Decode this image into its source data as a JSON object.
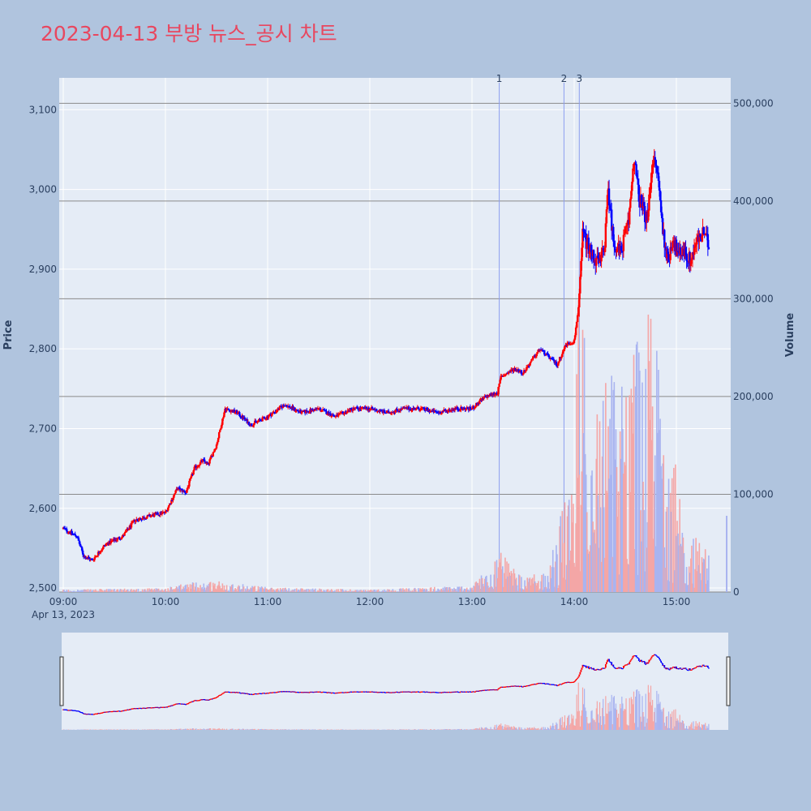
{
  "chart_data": {
    "type": "candlestick",
    "title": "2023-04-13 부방 뉴스_공시 차트",
    "ylabel": "Price",
    "y2label": "Volume",
    "xlabel": "",
    "x_date_label": "Apr 13, 2023",
    "ylim": [
      2497,
      3142
    ],
    "y2lim": [
      0,
      526000
    ],
    "xlim": [
      "09:00",
      "15:30"
    ],
    "y_ticks": [
      2500,
      2600,
      2700,
      2800,
      2900,
      3000,
      3100
    ],
    "y_tick_labels": [
      "2,500",
      "2,600",
      "2,700",
      "2,800",
      "2,900",
      "3,000",
      "3,100"
    ],
    "y2_ticks": [
      0,
      100000,
      200000,
      300000,
      400000,
      500000
    ],
    "y2_tick_labels": [
      "0",
      "100,000",
      "200,000",
      "300,000",
      "400,000",
      "500,000"
    ],
    "x_tick_labels": [
      "09:00",
      "10:00",
      "11:00",
      "12:00",
      "13:00",
      "14:00",
      "15:00"
    ],
    "grid": true,
    "up_color": "#ff0000",
    "down_color": "#0000ff",
    "events": [
      {
        "label": "1",
        "time": "13:16"
      },
      {
        "label": "2",
        "time": "13:54"
      },
      {
        "label": "3",
        "time": "14:03"
      }
    ],
    "price_keypoints": [
      [
        "09:00",
        2575
      ],
      [
        "09:08",
        2565
      ],
      [
        "09:12",
        2540
      ],
      [
        "09:17",
        2535
      ],
      [
        "09:25",
        2555
      ],
      [
        "09:35",
        2565
      ],
      [
        "09:42",
        2585
      ],
      [
        "09:50",
        2590
      ],
      [
        "10:00",
        2595
      ],
      [
        "10:07",
        2625
      ],
      [
        "10:12",
        2620
      ],
      [
        "10:17",
        2650
      ],
      [
        "10:22",
        2660
      ],
      [
        "10:25",
        2655
      ],
      [
        "10:30",
        2680
      ],
      [
        "10:35",
        2725
      ],
      [
        "10:42",
        2720
      ],
      [
        "10:50",
        2705
      ],
      [
        "11:00",
        2715
      ],
      [
        "11:10",
        2730
      ],
      [
        "11:20",
        2720
      ],
      [
        "11:30",
        2725
      ],
      [
        "11:40",
        2715
      ],
      [
        "11:50",
        2725
      ],
      [
        "12:00",
        2725
      ],
      [
        "12:10",
        2720
      ],
      [
        "12:20",
        2725
      ],
      [
        "12:30",
        2725
      ],
      [
        "12:40",
        2720
      ],
      [
        "12:50",
        2725
      ],
      [
        "13:00",
        2725
      ],
      [
        "13:08",
        2740
      ],
      [
        "13:15",
        2745
      ],
      [
        "13:17",
        2765
      ],
      [
        "13:25",
        2775
      ],
      [
        "13:30",
        2770
      ],
      [
        "13:35",
        2785
      ],
      [
        "13:40",
        2800
      ],
      [
        "13:45",
        2790
      ],
      [
        "13:50",
        2780
      ],
      [
        "13:55",
        2805
      ],
      [
        "14:00",
        2810
      ],
      [
        "14:03",
        2860
      ],
      [
        "14:05",
        2945
      ],
      [
        "14:10",
        2920
      ],
      [
        "14:15",
        2905
      ],
      [
        "14:18",
        2935
      ],
      [
        "14:20",
        3000
      ],
      [
        "14:23",
        2935
      ],
      [
        "14:27",
        2920
      ],
      [
        "14:32",
        2960
      ],
      [
        "14:35",
        3040
      ],
      [
        "14:38",
        2990
      ],
      [
        "14:43",
        2960
      ],
      [
        "14:46",
        3040
      ],
      [
        "14:49",
        3020
      ],
      [
        "14:52",
        2950
      ],
      [
        "14:55",
        2910
      ],
      [
        "14:58",
        2940
      ],
      [
        "15:01",
        2915
      ],
      [
        "15:04",
        2925
      ],
      [
        "15:08",
        2910
      ],
      [
        "15:12",
        2935
      ],
      [
        "15:16",
        2945
      ],
      [
        "15:19",
        2930
      ]
    ],
    "volume_profile": [
      [
        "09:00",
        1500
      ],
      [
        "10:00",
        2500
      ],
      [
        "10:15",
        6000
      ],
      [
        "10:30",
        7000
      ],
      [
        "11:00",
        3000
      ],
      [
        "12:00",
        1500
      ],
      [
        "13:00",
        4000
      ],
      [
        "13:16",
        25000
      ],
      [
        "13:30",
        8000
      ],
      [
        "13:45",
        15000
      ],
      [
        "13:54",
        55000
      ],
      [
        "14:00",
        60000
      ],
      [
        "14:03",
        210000
      ],
      [
        "14:10",
        120000
      ],
      [
        "14:20",
        130000
      ],
      [
        "14:35",
        160000
      ],
      [
        "14:45",
        170000
      ],
      [
        "14:55",
        110000
      ],
      [
        "15:05",
        40000
      ],
      [
        "15:20",
        25000
      ]
    ]
  }
}
